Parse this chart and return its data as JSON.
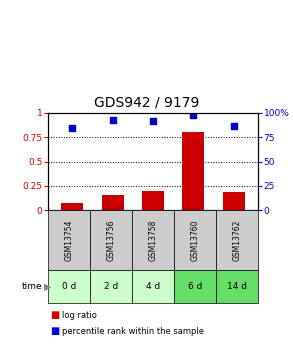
{
  "title": "GDS942 / 9179",
  "samples": [
    "GSM13754",
    "GSM13756",
    "GSM13758",
    "GSM13760",
    "GSM13762"
  ],
  "time_labels": [
    "0 d",
    "2 d",
    "4 d",
    "6 d",
    "14 d"
  ],
  "log_ratio": [
    0.07,
    0.15,
    0.2,
    0.8,
    0.19
  ],
  "percentile_rank": [
    0.85,
    0.93,
    0.92,
    0.98,
    0.87
  ],
  "bar_color": "#cc0000",
  "point_color": "#0000cc",
  "ylim_left": [
    0,
    1
  ],
  "ylim_right": [
    0,
    100
  ],
  "yticks_left": [
    0,
    0.25,
    0.5,
    0.75,
    1.0
  ],
  "ytick_labels_left": [
    "0",
    "0.25",
    "0.5",
    "0.75",
    "1"
  ],
  "yticks_right": [
    0,
    25,
    50,
    75,
    100
  ],
  "ytick_labels_right": [
    "0",
    "25",
    "50",
    "75",
    "100%"
  ],
  "grid_lines": [
    0.25,
    0.5,
    0.75
  ],
  "sample_bg_color": "#cccccc",
  "time_bg_colors": [
    "#ccffcc",
    "#ccffcc",
    "#ccffcc",
    "#66dd66",
    "#66dd66"
  ],
  "legend_log_ratio": "log ratio",
  "legend_percentile": "percentile rank within the sample",
  "title_fontsize": 10,
  "tick_fontsize": 6.5,
  "bar_width": 0.55,
  "fig_width": 2.93,
  "fig_height": 3.45,
  "dpi": 100
}
